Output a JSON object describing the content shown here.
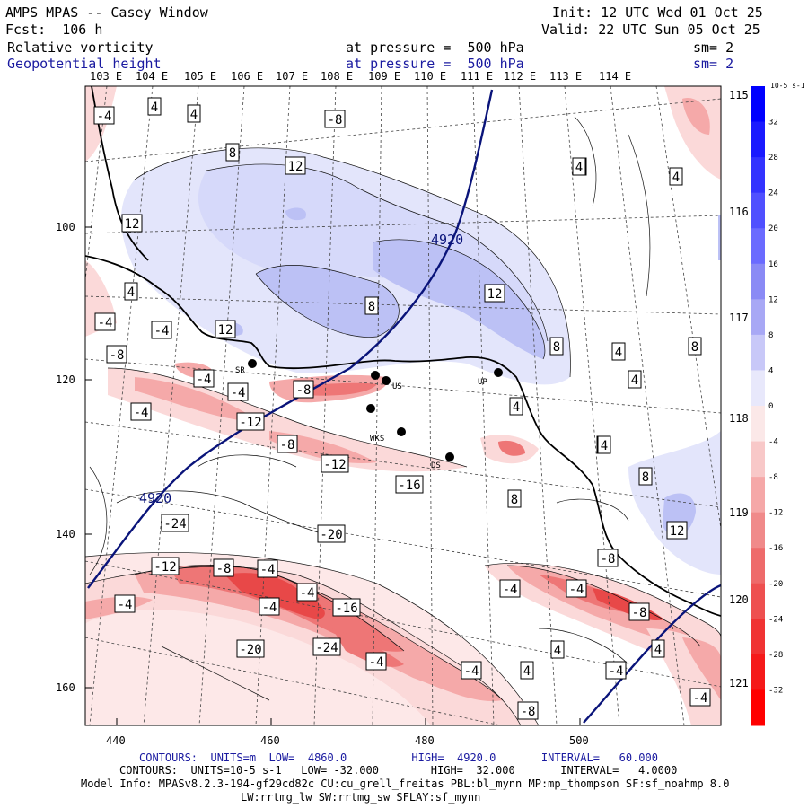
{
  "header": {
    "title": "AMPS MPAS -- Casey Window",
    "init": "Init: 12 UTC Wed 01 Oct 25",
    "fcst": "Fcst:  106 h",
    "valid": "Valid: 22 UTC Sun 05 Oct 25",
    "field1": "Relative vorticity",
    "field1_level": "at pressure =  500 hPa",
    "field1_sm": "sm= 2",
    "field2": "Geopotential height",
    "field2_level": "at pressure =  500 hPa",
    "field2_sm": "sm= 2"
  },
  "axes": {
    "top_lon": [
      "103 E",
      "104 E",
      "105 E",
      "106 E",
      "107 E",
      "108 E",
      "109 E",
      "110 E",
      "111 E",
      "112 E",
      "113 E",
      "114 E"
    ],
    "right_lon": [
      "115 E",
      "116 E",
      "117 E",
      "118 E",
      "119 E",
      "120 E",
      "121 E"
    ],
    "x_ticks": [
      "440",
      "460",
      "480",
      "500"
    ],
    "y_ticks": [
      "100",
      "120",
      "140",
      "160"
    ]
  },
  "colorbar": {
    "unit": "10-5 s-1",
    "labels": [
      "32",
      "28",
      "24",
      "20",
      "16",
      "12",
      "8",
      "4",
      "0",
      "-4",
      "-8",
      "-12",
      "-16",
      "-20",
      "-24",
      "-28",
      "-32"
    ],
    "colors": {
      "strong_blue": "#0000ff",
      "strong_red": "#ff0000"
    }
  },
  "map": {
    "height_label": "4920",
    "height_color": "#0a147a",
    "stations": [
      "SR",
      "US",
      "DS",
      "UP",
      "WKS"
    ],
    "contour_labels": {
      "pos": [
        "8",
        "12",
        "12",
        "12",
        "8",
        "12",
        "8",
        "4",
        "4",
        "4",
        "8",
        "8",
        "4",
        "8",
        "12",
        "8",
        "4",
        "8"
      ],
      "neg": [
        "-4",
        "-8",
        "-4",
        "-4",
        "-8",
        "-4",
        "-8",
        "-12",
        "-4",
        "-4",
        "-8",
        "-12",
        "-16",
        "-20",
        "-24",
        "-12",
        "-8",
        "-4",
        "-4",
        "-16",
        "-4",
        "-4",
        "-20",
        "-24",
        "-4",
        "-4",
        "-8",
        "-4",
        "-4",
        "-8",
        "-8",
        "-4",
        "-4"
      ],
      "plain4": [
        "4",
        "4",
        "4",
        "4",
        "4",
        "4",
        "4",
        "4",
        "4"
      ]
    }
  },
  "footer": {
    "line1": "CONTOURS:  UNITS=m  LOW=  4860.0          HIGH=  4920.0       INTERVAL=   60.000",
    "line2": "CONTOURS:  UNITS=10-5 s-1   LOW= -32.000        HIGH=  32.000       INTERVAL=   4.0000",
    "line3": "Model Info: MPASv8.2.3-194-gf29cd82c CU:cu_grell_freitas PBL:bl_mynn MP:mp_thompson SF:sf_noahmp 8.0",
    "line4": "LW:rrtmg_lw SW:rrtmg_sw SFLAY:sf_mynn"
  }
}
